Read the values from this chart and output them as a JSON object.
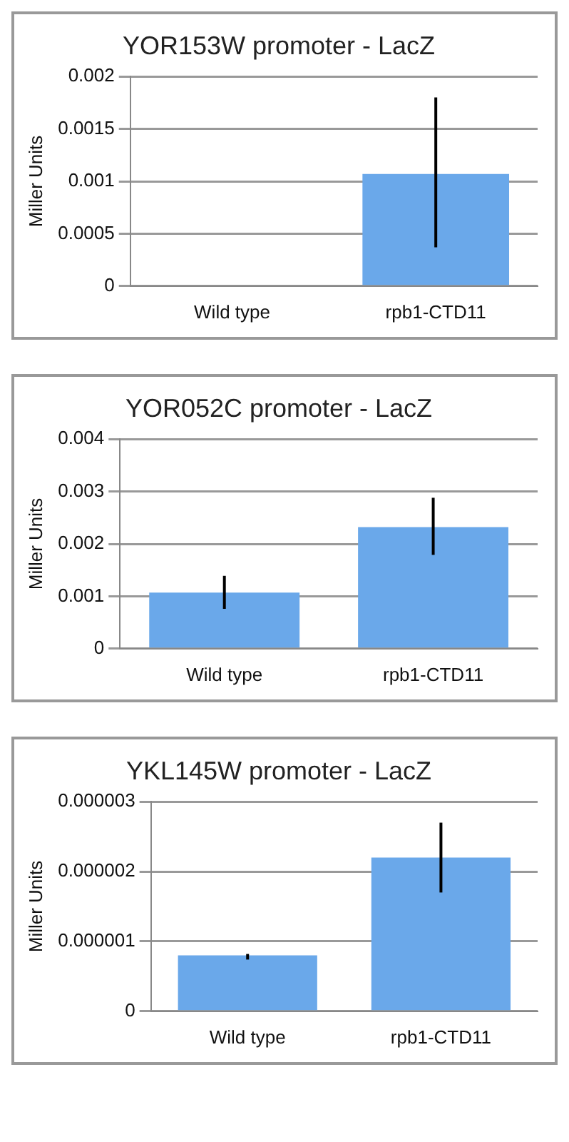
{
  "chart_data": [
    {
      "type": "bar",
      "title": "YOR153W promoter - LacZ",
      "ylabel": "Miller Units",
      "categories": [
        "Wild type",
        "rpb1-CTD11"
      ],
      "values": [
        0,
        0.00107
      ],
      "errors": [
        null,
        [
          0.00037,
          0.0018
        ]
      ],
      "color": "#6aa8ea",
      "ylim": [
        0,
        0.002
      ],
      "yticks": [
        0,
        0.0005,
        0.001,
        0.0015,
        0.002
      ],
      "grid": "y"
    },
    {
      "type": "bar",
      "title": "YOR052C promoter - LacZ",
      "ylabel": "Miller Units",
      "categories": [
        "Wild type",
        "rpb1-CTD11"
      ],
      "values": [
        0.00107,
        0.00232
      ],
      "errors": [
        [
          0.00076,
          0.00139
        ],
        [
          0.00179,
          0.00288
        ]
      ],
      "color": "#6aa8ea",
      "ylim": [
        0,
        0.004
      ],
      "yticks": [
        0,
        0.001,
        0.002,
        0.003,
        0.004
      ],
      "grid": "y"
    },
    {
      "type": "bar",
      "title": "YKL145W promoter - LacZ",
      "ylabel": "Miller Units",
      "categories": [
        "Wild type",
        "rpb1-CTD11"
      ],
      "values": [
        8e-07,
        2.2e-06
      ],
      "errors": [
        [
          7.4e-07,
          8.2e-07
        ],
        [
          1.7e-06,
          2.7e-06
        ]
      ],
      "color": "#6aa8ea",
      "ylim": [
        0,
        3e-06
      ],
      "yticks": [
        0,
        {
          "value": 1e-06,
          "label": "0.000001"
        },
        {
          "value": 2e-06,
          "label": "0.000002"
        },
        {
          "value": 3e-06,
          "label": "0.000003"
        }
      ],
      "grid": "y"
    }
  ]
}
